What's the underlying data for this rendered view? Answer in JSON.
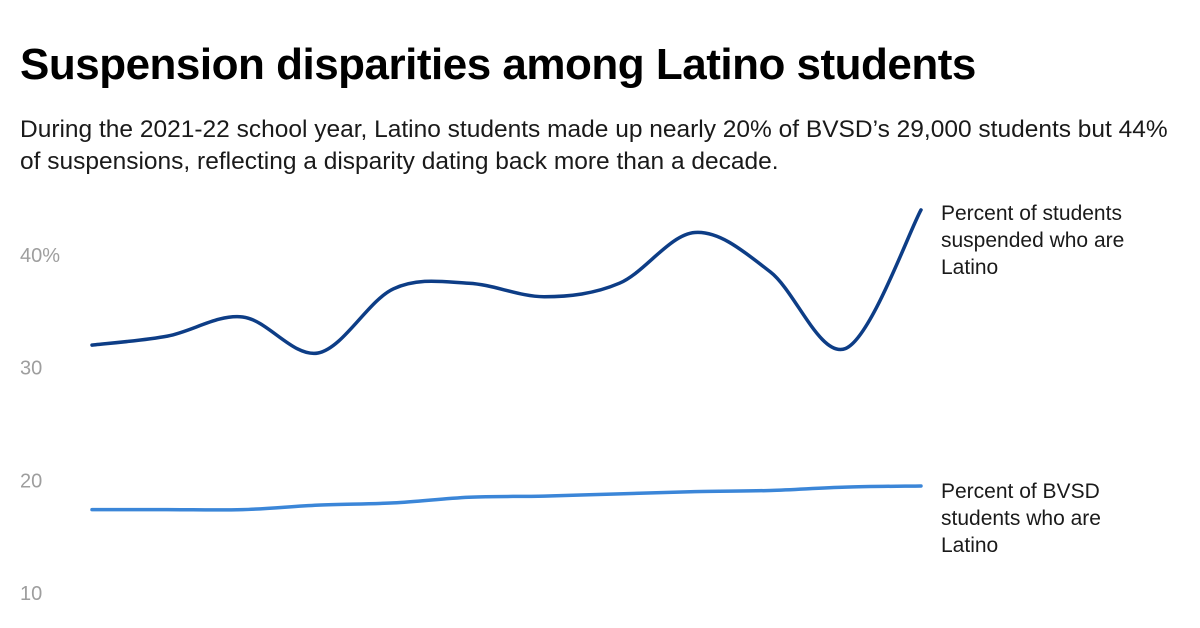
{
  "title": "Suspension disparities among Latino students",
  "subtitle": "During the 2021-22 school year, Latino students made up nearly 20% of BVSD’s 29,000 students but 44% of suspensions, reflecting a disparity dating back more than a decade.",
  "colors": {
    "suspended_series": "#0d3d86",
    "students_series": "#3b86d8",
    "tick_text": "#9e9e9e"
  },
  "chart_data": {
    "type": "line",
    "title": "Suspension disparities among Latino students",
    "xlabel": "",
    "ylabel": "",
    "ylim": [
      10,
      44
    ],
    "grid": false,
    "legend": "direct labels at line ends (right)",
    "yticks": [
      {
        "value": 40,
        "label": "40%"
      },
      {
        "value": 30,
        "label": "30"
      },
      {
        "value": 20,
        "label": "20"
      },
      {
        "value": 10,
        "label": "10"
      }
    ],
    "x": [
      1,
      2,
      3,
      4,
      5,
      6,
      7,
      8,
      9,
      10,
      11,
      12
    ],
    "series": [
      {
        "name": "Percent of students suspended who are Latino",
        "label_lines": [
          "Percent of students",
          "suspended who are",
          "Latino"
        ],
        "color": "#0d3d86",
        "values": [
          32.0,
          32.8,
          34.5,
          31.3,
          37.0,
          37.5,
          36.3,
          37.5,
          42.0,
          38.5,
          31.7,
          44.0
        ]
      },
      {
        "name": "Percent of BVSD students who are Latino",
        "label_lines": [
          "Percent of BVSD",
          "students who are",
          "Latino"
        ],
        "color": "#3b86d8",
        "values": [
          17.4,
          17.4,
          17.4,
          17.8,
          18.0,
          18.5,
          18.6,
          18.8,
          19.0,
          19.1,
          19.4,
          19.5
        ]
      }
    ]
  }
}
